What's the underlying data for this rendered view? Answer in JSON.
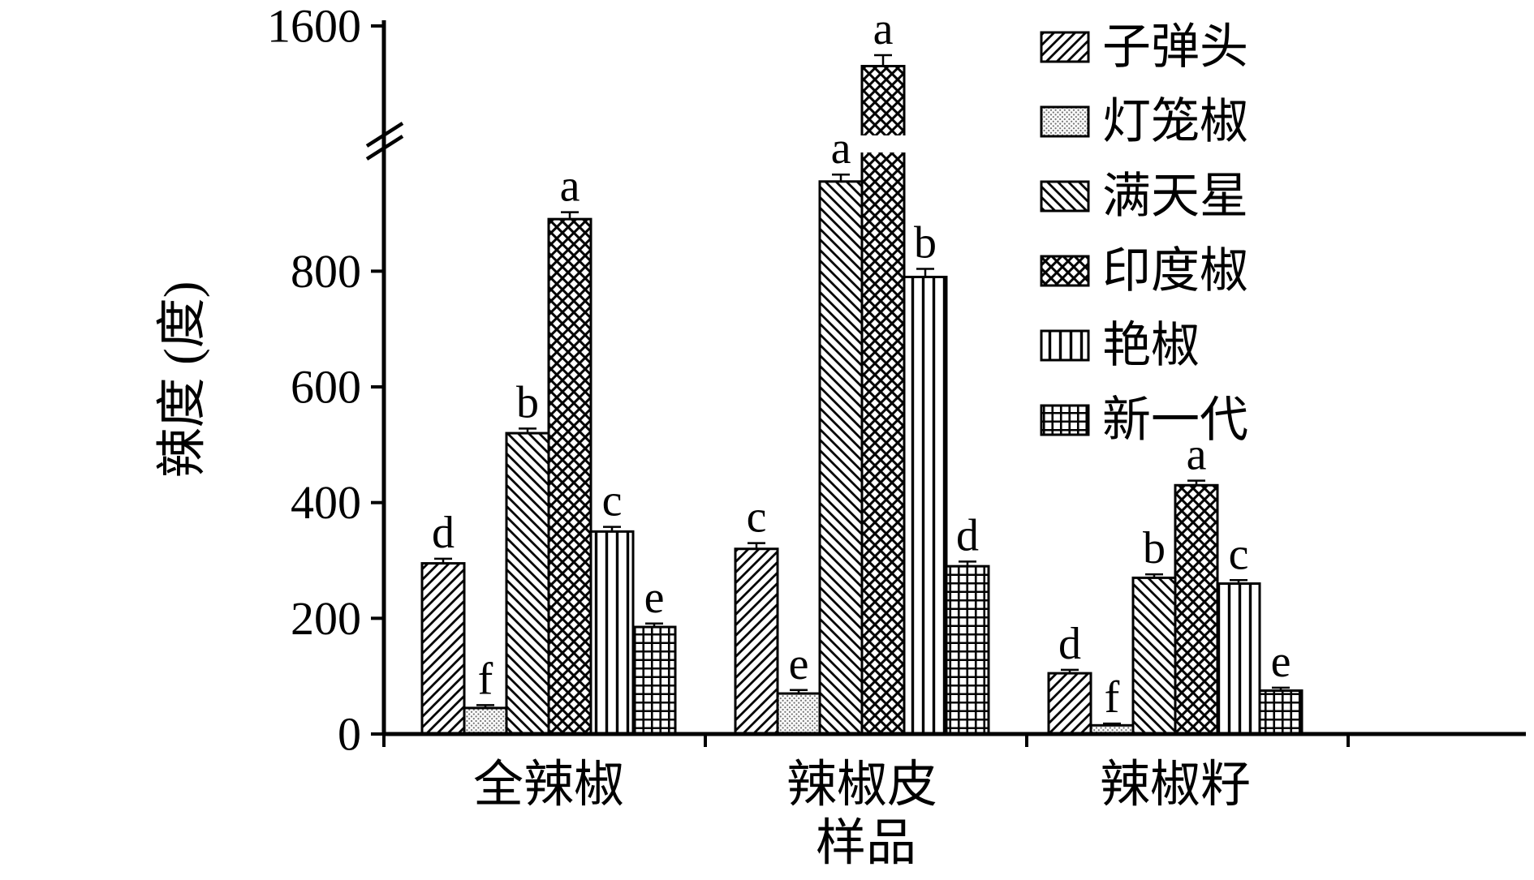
{
  "chart_data": {
    "type": "bar",
    "title": "",
    "xlabel": "样品",
    "ylabel": "辣度 (度)",
    "categories": [
      {
        "key": "quanlajiao",
        "label": "全辣椒"
      },
      {
        "key": "lajiaopi",
        "label": "辣椒皮"
      },
      {
        "key": "lajiaozi",
        "label": "辣椒籽"
      }
    ],
    "series": [
      {
        "key": "zidantou",
        "name": "子弹头",
        "pattern": "diag-forward",
        "values": [
          295,
          320,
          105
        ],
        "errors": [
          8,
          10,
          6
        ],
        "letters": [
          "d",
          "c",
          "d"
        ]
      },
      {
        "key": "denglongjiao",
        "name": "灯笼椒",
        "pattern": "dots",
        "values": [
          45,
          70,
          15
        ],
        "errors": [
          5,
          6,
          3
        ],
        "letters": [
          "f",
          "e",
          "f"
        ]
      },
      {
        "key": "mantianxing",
        "name": "满天星",
        "pattern": "diag-back",
        "values": [
          520,
          955,
          270
        ],
        "errors": [
          8,
          12,
          6
        ],
        "letters": [
          "b",
          "a",
          "b"
        ]
      },
      {
        "key": "yindujiao",
        "name": "印度椒",
        "pattern": "crosshatch",
        "values": [
          890,
          1490,
          430
        ],
        "errors": [
          12,
          30,
          8
        ],
        "letters": [
          "a",
          "a",
          "a"
        ]
      },
      {
        "key": "yanjiao",
        "name": "艳椒",
        "pattern": "vertical",
        "values": [
          350,
          790,
          260
        ],
        "errors": [
          8,
          14,
          6
        ],
        "letters": [
          "c",
          "b",
          "c"
        ]
      },
      {
        "key": "xinyidai",
        "name": "新一代",
        "pattern": "grid",
        "values": [
          185,
          290,
          75
        ],
        "errors": [
          6,
          8,
          5
        ],
        "letters": [
          "e",
          "d",
          "e"
        ]
      }
    ],
    "y_axis": {
      "lower_ticks": [
        0,
        200,
        400,
        600,
        800
      ],
      "upper_ticks": [
        1600
      ],
      "axis_break_between": [
        1000,
        1300
      ],
      "ylim": [
        0,
        1600
      ]
    },
    "legend_position": "top-right",
    "colors": {
      "foreground": "#000000",
      "background": "#ffffff"
    }
  }
}
